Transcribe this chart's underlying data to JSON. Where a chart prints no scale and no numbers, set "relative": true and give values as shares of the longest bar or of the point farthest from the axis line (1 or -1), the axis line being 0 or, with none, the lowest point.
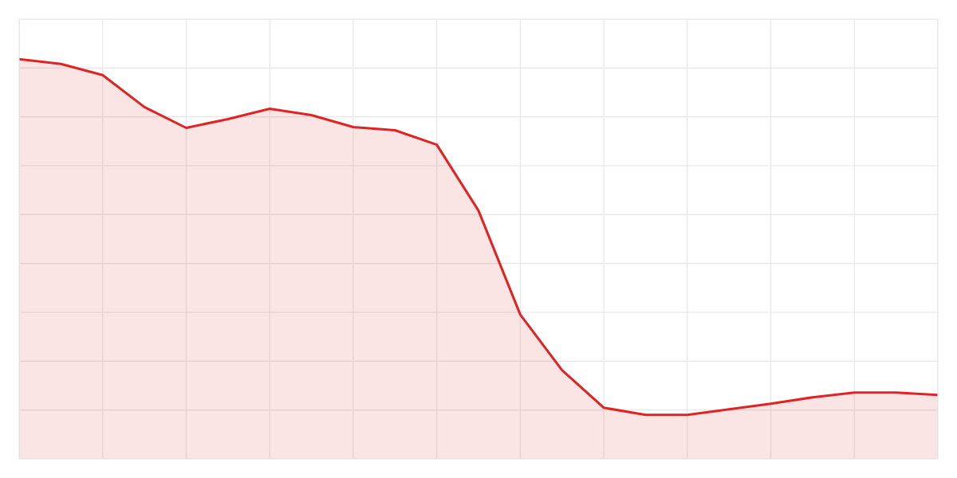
{
  "chart_data": {
    "type": "area",
    "relative": true,
    "grid": true,
    "marker": "none",
    "line_style": "solid",
    "categories": [
      null,
      null,
      null,
      null,
      null,
      null,
      null,
      null,
      null,
      null,
      null,
      null,
      null,
      null,
      null,
      null,
      null,
      null,
      null,
      null,
      null,
      null,
      null
    ],
    "series": [
      {
        "color": "#e02424",
        "values": [
          1,
          0.988,
          0.96,
          0.88,
          0.828,
          0.85,
          0.876,
          0.86,
          0.83,
          0.822,
          0.786,
          0.621,
          0.361,
          0.222,
          0.128,
          0.11,
          0.11,
          0.124,
          0.138,
          0.154,
          0.166,
          0.166,
          0.16
        ]
      }
    ]
  }
}
